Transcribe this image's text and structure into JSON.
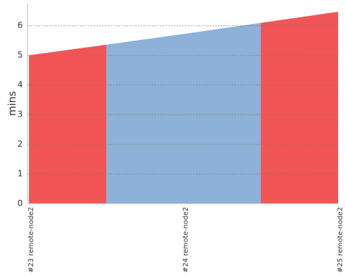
{
  "chart_data": {
    "type": "area",
    "y_label": "mins",
    "categories": [
      "#23 remote-node2",
      "#24 remote-node2",
      "#25 remote-node2"
    ],
    "values": [
      5.0,
      5.72,
      6.47
    ],
    "colors": [
      "#f25555",
      "#8eb1d9",
      "#f25555"
    ],
    "ylim": [
      0,
      6.75
    ],
    "yticks": [
      0,
      1,
      2,
      3,
      4,
      5,
      6
    ],
    "grid": true
  }
}
